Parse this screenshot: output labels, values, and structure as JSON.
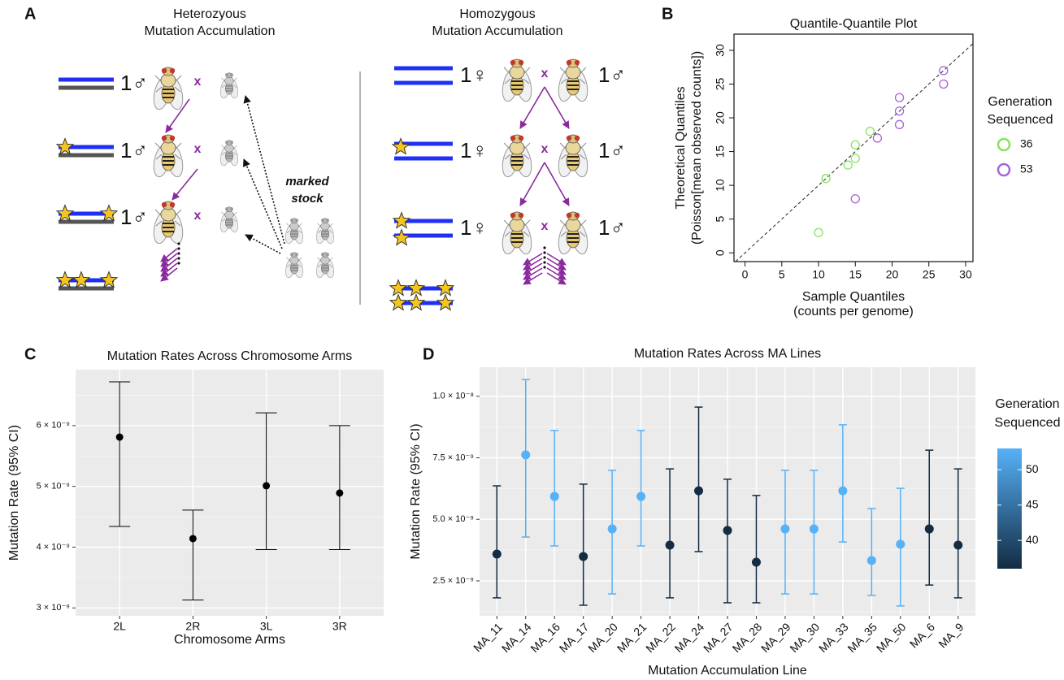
{
  "diagram": {
    "panel": "A",
    "left_title": [
      "Heterozyous",
      "Mutation Accumulation"
    ],
    "right_title": [
      "Homozygous",
      "Mutation Accumulation"
    ],
    "left_males": [
      "1♂",
      "1♂",
      "1♂"
    ],
    "right_females": [
      "1♀",
      "1♀",
      "1♀"
    ],
    "right_males": [
      "1♂",
      "1♂",
      "1♂"
    ],
    "crosses": [
      "x",
      "x",
      "x",
      "x",
      "x",
      "x"
    ],
    "stock_label": [
      "marked",
      "stock"
    ]
  },
  "chart_data": [
    {
      "type": "scatter",
      "panel": "B",
      "title": "Quantile-Quantile Plot",
      "x_label": [
        "Sample Quantiles",
        "(counts per genome)"
      ],
      "y_label": [
        "Theoretical Quantiles",
        "(Poisson[mean observed counts])"
      ],
      "legend_title": [
        "Generation",
        "Sequenced"
      ],
      "legend": "right",
      "xlim": [
        -1.5,
        31
      ],
      "ylim": [
        -1.3,
        32.4
      ],
      "xticks": [
        0,
        5,
        10,
        15,
        20,
        25,
        30
      ],
      "yticks": [
        0,
        5,
        10,
        15,
        20,
        25,
        30
      ],
      "series": [
        {
          "name": "36",
          "color": "#86e35e",
          "x": [
            10,
            11,
            14,
            15,
            15,
            17
          ],
          "y": [
            3,
            11,
            13,
            14,
            16,
            18
          ]
        },
        {
          "name": "53",
          "color": "#a565d9",
          "x": [
            15,
            18,
            21,
            21,
            21,
            27,
            27
          ],
          "y": [
            8,
            17,
            19,
            21,
            23,
            25,
            27
          ]
        }
      ]
    },
    {
      "type": "errorbar",
      "panel": "C",
      "title": "Mutation Rates Across Chromosome Arms",
      "x_label": "Chromosome Arms",
      "y_label": "Mutation Rate (95% CI)",
      "categories": [
        "2L",
        "2R",
        "3L",
        "3R"
      ],
      "values": [
        5.81e-09,
        4.14e-09,
        5.01e-09,
        4.89e-09
      ],
      "lower": [
        4.34e-09,
        3.13e-09,
        3.96e-09,
        3.96e-09
      ],
      "upper": [
        6.72e-09,
        4.61e-09,
        6.21e-09,
        6e-09
      ],
      "color": "#000000",
      "grid": true,
      "ylim": [
        2.87e-09,
        6.92e-09
      ],
      "yticks": [
        {
          "value": 3e-09,
          "label": "3 × 10⁻⁹"
        },
        {
          "value": 4e-09,
          "label": "4 × 10⁻⁹"
        },
        {
          "value": 5e-09,
          "label": "5 × 10⁻⁹"
        },
        {
          "value": 6e-09,
          "label": "6 × 10⁻⁹"
        }
      ]
    },
    {
      "type": "errorbar",
      "panel": "D",
      "title": "Mutation Rates Across MA Lines",
      "x_label": "Mutation Accumulation Line",
      "y_label": "Mutation Rate (95% CI)",
      "categories": [
        "MA_11",
        "MA_14",
        "MA_16",
        "MA_17",
        "MA_20",
        "MA_21",
        "MA_22",
        "MA_24",
        "MA_27",
        "MA_28",
        "MA_29",
        "MA_30",
        "MA_33",
        "MA_35",
        "MA_50",
        "MA_6",
        "MA_9"
      ],
      "values": [
        3.59e-09,
        7.62e-09,
        5.93e-09,
        3.49e-09,
        4.61e-09,
        5.93e-09,
        3.95e-09,
        6.16e-09,
        4.55e-09,
        3.26e-09,
        4.61e-09,
        4.61e-09,
        6.16e-09,
        3.33e-09,
        3.99e-09,
        4.61e-09,
        3.95e-09
      ],
      "lower": [
        1.81e-09,
        4.28e-09,
        3.92e-09,
        1.51e-09,
        1.97e-09,
        3.92e-09,
        1.81e-09,
        3.69e-09,
        1.61e-09,
        1.61e-09,
        1.97e-09,
        1.97e-09,
        4.08e-09,
        1.91e-09,
        1.48e-09,
        2.33e-09,
        1.81e-09
      ],
      "upper": [
        6.36e-09,
        1.068e-08,
        8.61e-09,
        6.43e-09,
        6.99e-09,
        8.61e-09,
        7.05e-09,
        9.56e-09,
        6.63e-09,
        5.97e-09,
        6.99e-09,
        6.99e-09,
        8.84e-09,
        5.44e-09,
        6.26e-09,
        7.81e-09,
        7.05e-09
      ],
      "generation": [
        36,
        53,
        53,
        36,
        53,
        53,
        36,
        36,
        36,
        36,
        53,
        53,
        53,
        53,
        53,
        36,
        36
      ],
      "colorbar": {
        "title": [
          "Generation",
          "Sequenced"
        ],
        "lim": [
          36,
          53
        ],
        "ticks": [
          40,
          45,
          50
        ],
        "colors": [
          "#132b43",
          "#56b1f7"
        ]
      },
      "grid": true,
      "ylim": [
        1.08e-09,
        1.118e-08
      ],
      "yticks": [
        {
          "value": 2.5e-09,
          "label": "2.5 × 10⁻⁹"
        },
        {
          "value": 5e-09,
          "label": "5.0 × 10⁻⁹"
        },
        {
          "value": 7.5e-09,
          "label": "7.5 × 10⁻⁹"
        },
        {
          "value": 1e-08,
          "label": "1.0 × 10⁻⁸"
        }
      ]
    }
  ]
}
